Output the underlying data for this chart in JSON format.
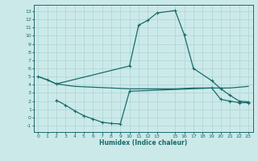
{
  "title": "",
  "xlabel": "Humidex (Indice chaleur)",
  "bg_color": "#cce9e9",
  "grid_color": "#aad4d4",
  "line_color": "#1a6b6b",
  "xlim": [
    -0.5,
    23.5
  ],
  "ylim": [
    -1.8,
    13.8
  ],
  "xticks": [
    0,
    1,
    2,
    3,
    4,
    5,
    6,
    7,
    8,
    9,
    10,
    11,
    12,
    13,
    15,
    16,
    17,
    18,
    19,
    20,
    21,
    22,
    23
  ],
  "yticks": [
    -1,
    0,
    1,
    2,
    3,
    4,
    5,
    6,
    7,
    8,
    9,
    10,
    11,
    12,
    13
  ],
  "line1_x": [
    0,
    1,
    2,
    10,
    11,
    12,
    13,
    15,
    16,
    17,
    19,
    20,
    21,
    22,
    23
  ],
  "line1_y": [
    5.0,
    4.6,
    4.1,
    6.3,
    11.3,
    11.9,
    12.8,
    13.1,
    10.1,
    6.0,
    4.5,
    3.5,
    2.7,
    2.0,
    1.9
  ],
  "line2_x": [
    0,
    1,
    2,
    4,
    6,
    10,
    13,
    15,
    17,
    20,
    21,
    22,
    23
  ],
  "line2_y": [
    5.0,
    4.6,
    4.1,
    3.8,
    3.7,
    3.5,
    3.5,
    3.5,
    3.6,
    3.6,
    3.6,
    3.7,
    3.8
  ],
  "line3_x": [
    2,
    3,
    4,
    5,
    6,
    7,
    8,
    9,
    10,
    19,
    20,
    21,
    22,
    23
  ],
  "line3_y": [
    2.1,
    1.5,
    0.8,
    0.2,
    -0.2,
    -0.6,
    -0.75,
    -0.8,
    3.2,
    3.6,
    2.2,
    2.0,
    1.8,
    1.8
  ]
}
